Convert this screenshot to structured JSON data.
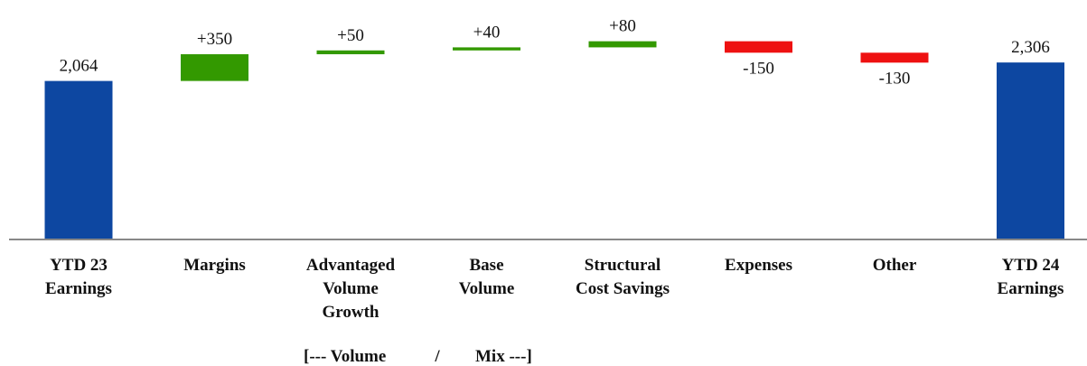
{
  "chart_data": {
    "type": "bar",
    "subtype": "waterfall",
    "title": "",
    "xlabel": "",
    "ylabel": "",
    "categories": [
      [
        "YTD 23",
        "Earnings"
      ],
      [
        "Margins"
      ],
      [
        "Advantaged",
        "Volume",
        "Growth"
      ],
      [
        "Base",
        "Volume"
      ],
      [
        "Structural",
        "Cost Savings"
      ],
      [
        "Expenses"
      ],
      [
        "Other"
      ],
      [
        "YTD 24",
        "Earnings"
      ]
    ],
    "values": [
      2064,
      350,
      50,
      40,
      80,
      -150,
      -130,
      2306
    ],
    "value_labels": [
      "2,064",
      "+350",
      "+50",
      "+40",
      "+80",
      "-150",
      "-130",
      "2,306"
    ],
    "bar_kinds": [
      "total",
      "increase",
      "increase",
      "increase",
      "increase",
      "decrease",
      "decrease",
      "total"
    ],
    "colors": {
      "total": "#0d47a1",
      "increase": "#339900",
      "decrease": "#ee1111"
    },
    "y_axis_visible": false,
    "grid": false,
    "ylim": [
      0,
      2480
    ],
    "bracket_note": {
      "start": "[--- Volume",
      "sep": "/",
      "end": "Mix ---]",
      "spans_categories": [
        2,
        3
      ]
    }
  }
}
